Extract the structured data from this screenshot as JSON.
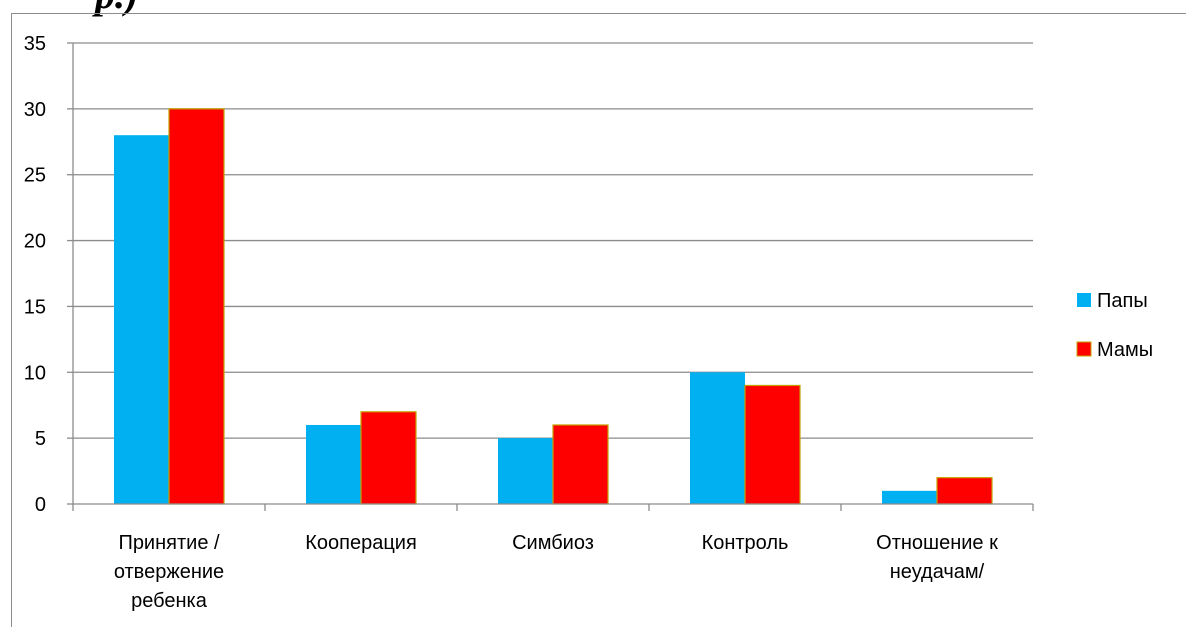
{
  "header": {
    "partial_title": "р.)"
  },
  "chart_data": {
    "type": "bar",
    "categories": [
      [
        "Принятие /",
        "отвержение",
        "ребенка"
      ],
      [
        "Кооперация"
      ],
      [
        "Симбиоз"
      ],
      [
        "Контроль"
      ],
      [
        "Отношение к",
        "неудачам/"
      ]
    ],
    "series": [
      {
        "name": "Папы",
        "values": [
          28,
          6,
          5,
          10,
          1
        ],
        "color": "#00b0f0"
      },
      {
        "name": "Мамы",
        "values": [
          30,
          7,
          6,
          9,
          2
        ],
        "color": "#ff0000"
      }
    ],
    "ylim": [
      0,
      35
    ],
    "yticks": [
      0,
      5,
      10,
      15,
      20,
      25,
      30,
      35
    ],
    "grid": true,
    "legend_position": "right"
  }
}
